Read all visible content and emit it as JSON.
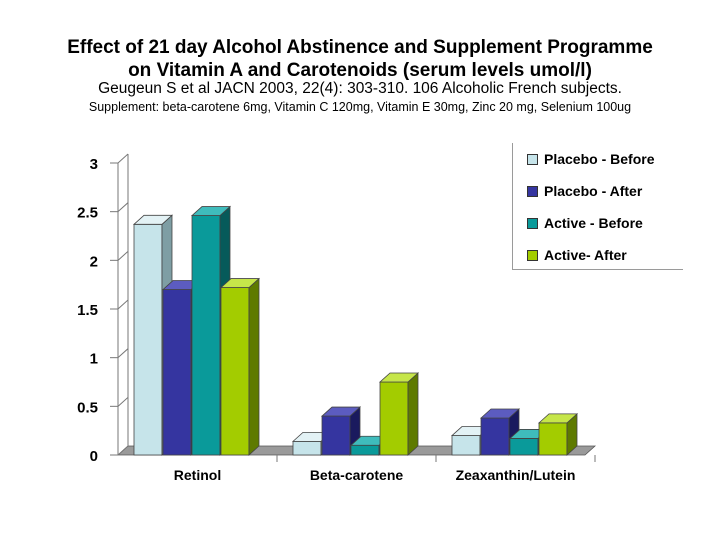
{
  "title_line1": "Effect of 21 day Alcohol Abstinence and Supplement Programme",
  "title_line2": "on Vitamin A and Carotenoids (serum levels umol/l)",
  "citation": "Geugeun S et al JACN 2003, 22(4): 303-310.  106 Alcoholic French subjects.",
  "supplement": "Supplement: beta-carotene 6mg, Vitamin C 120mg, Vitamin E 30mg, Zinc 20 mg, Selenium 100ug",
  "chart_data": {
    "type": "bar",
    "title": "Effect of 21 day Alcohol Abstinence and Supplement Programme on Vitamin A and Carotenoids (serum levels umol/l)",
    "categories": [
      "Retinol",
      "Beta-carotene",
      "Zeaxanthin/Lutein"
    ],
    "series": [
      {
        "name": "Placebo - Before",
        "color": "#c6e4ea",
        "side": "#7e9ea4",
        "top": "#e3f2f5",
        "values": [
          2.37,
          0.14,
          0.2
        ]
      },
      {
        "name": "Placebo - After",
        "color": "#3535a0",
        "side": "#1a1a5e",
        "top": "#5c5cc0",
        "values": [
          1.7,
          0.4,
          0.38
        ]
      },
      {
        "name": "Active - Before",
        "color": "#0a9a9a",
        "side": "#065a5a",
        "top": "#3fbcbc",
        "values": [
          2.46,
          0.1,
          0.17
        ]
      },
      {
        "name": "Active- After",
        "color": "#a3cc00",
        "side": "#5e7a00",
        "top": "#c6e64a",
        "values": [
          1.72,
          0.75,
          0.33
        ]
      }
    ],
    "ylim": [
      0,
      3
    ],
    "yticks": [
      "0",
      "0.5",
      "1",
      "1.5",
      "2",
      "2.5",
      "3"
    ],
    "xlabel": "",
    "ylabel": "",
    "legend_position": "top-right"
  }
}
